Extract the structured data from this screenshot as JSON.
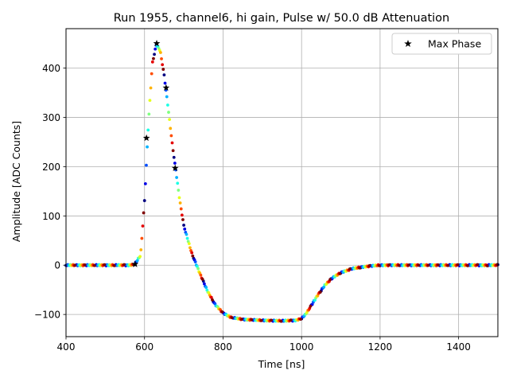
{
  "chart_data": {
    "type": "scatter",
    "title": "Run 1955, channel6, hi gain, Pulse w/ 50.0 dB Attenuation",
    "xlabel": "Time [ns]",
    "ylabel": "Amplitude [ADC Counts]",
    "xlim": [
      400,
      1500
    ],
    "ylim": [
      -145,
      480
    ],
    "xticks": [
      400,
      600,
      800,
      1000,
      1200,
      1400
    ],
    "yticks": [
      -100,
      0,
      100,
      200,
      300,
      400
    ],
    "xtick_labels": [
      "400",
      "600",
      "800",
      "1000",
      "1200",
      "1400"
    ],
    "ytick_labels": [
      "−100",
      "0",
      "100",
      "200",
      "300",
      "400"
    ],
    "grid": true,
    "legend": {
      "position": "top-right",
      "entries": [
        "Max Phase"
      ]
    },
    "colormap": "jet",
    "pulse_shape": {
      "x": [
        400,
        560,
        575,
        590,
        600,
        610,
        620,
        630,
        640,
        650,
        660,
        670,
        680,
        690,
        700,
        720,
        740,
        760,
        780,
        800,
        820,
        850,
        900,
        950,
        985,
        1000,
        1010,
        1020,
        1040,
        1060,
        1080,
        1100,
        1130,
        1160,
        1200,
        1300,
        1400,
        1500
      ],
      "y": [
        0,
        0,
        2,
        20,
        130,
        290,
        410,
        448,
        435,
        385,
        320,
        250,
        190,
        130,
        80,
        25,
        -15,
        -52,
        -80,
        -97,
        -106,
        -110,
        -112,
        -113,
        -112,
        -108,
        -100,
        -88,
        -62,
        -40,
        -25,
        -15,
        -7,
        -3,
        0,
        0,
        0,
        0
      ]
    },
    "series": [
      {
        "name": "Max Phase",
        "marker": "star",
        "x": [
          576,
          605,
          631,
          655,
          678
        ],
        "y": [
          2,
          258,
          450,
          360,
          197
        ]
      }
    ]
  }
}
